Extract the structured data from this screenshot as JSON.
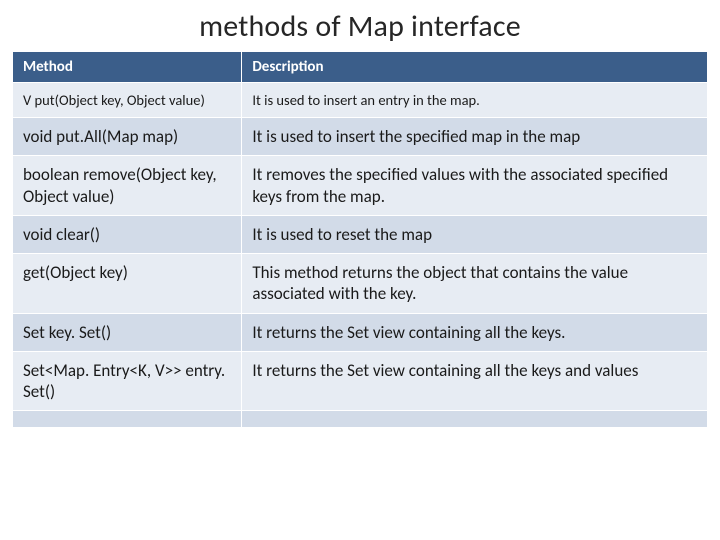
{
  "slide": {
    "title": "methods of Map interface"
  },
  "table": {
    "columns": [
      "Method",
      "Description"
    ],
    "header_bg": "#3b5e8a",
    "header_fg": "#ffffff",
    "row_odd_bg": "#e7ecf3",
    "row_even_bg": "#d2dbe8",
    "col_widths": [
      "33%",
      "67%"
    ],
    "title_fontsize": 30,
    "header_fontsize": 15,
    "cell_fontsize": 17,
    "rows": [
      {
        "method": "V put(Object key, Object value)",
        "desc": "It is used to insert an entry in the map.",
        "small": true
      },
      {
        "method": "void put.All(Map map)",
        "desc": "It is used to insert the specified map in the map"
      },
      {
        "method": "boolean remove(Object key, Object value)",
        "desc": "It removes the specified values with the associated specified keys from the map."
      },
      {
        "method": "void clear()",
        "desc": "It is used to reset the map"
      },
      {
        "method": "get(Object key)",
        "desc": "This method returns the object that contains the value associated with the key."
      },
      {
        "method": "Set key. Set()",
        "desc": "It returns the Set view containing all the keys."
      },
      {
        "method": "Set<Map. Entry<K, V>> entry. Set()",
        "desc": "It returns the Set view containing all the keys and values"
      },
      {
        "method": "",
        "desc": ""
      }
    ]
  }
}
